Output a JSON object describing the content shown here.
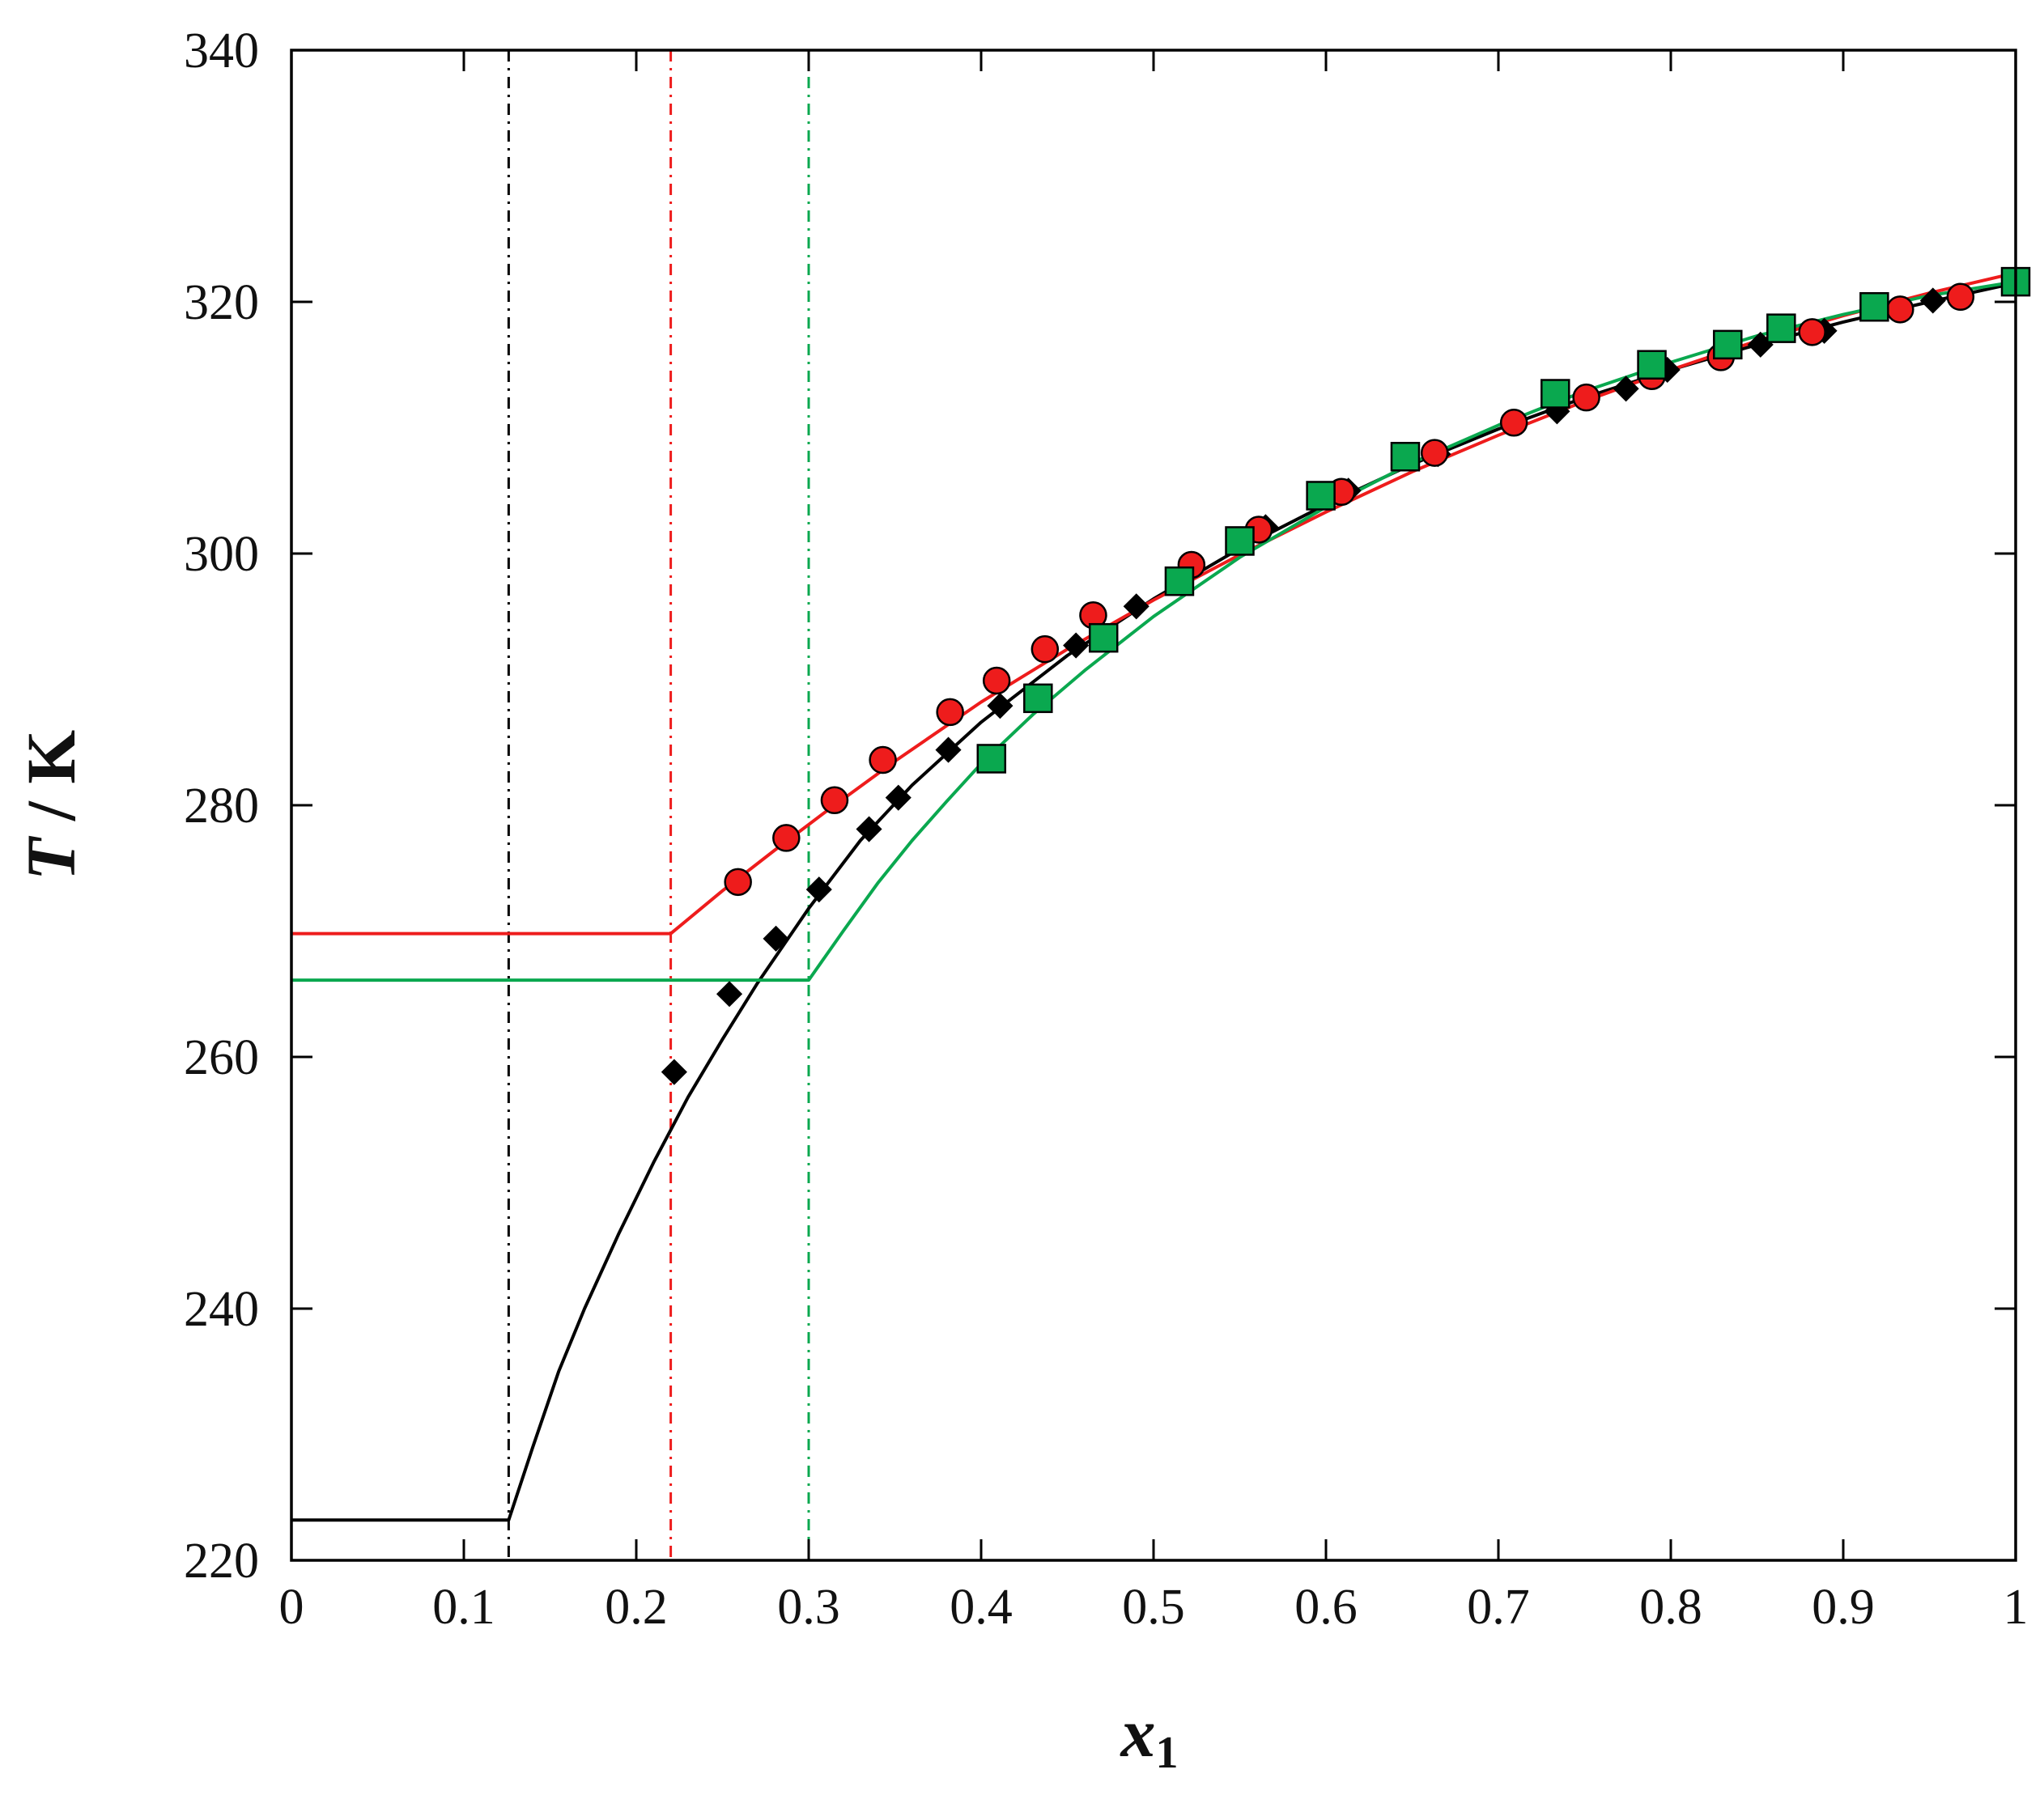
{
  "chart_data": {
    "type": "scatter",
    "title": "",
    "xlabel": {
      "main": "x",
      "sub": "1"
    },
    "ylabel": {
      "main": "T",
      "rest": " / K"
    },
    "xlim": [
      0,
      1
    ],
    "ylim": [
      220,
      340
    ],
    "xticks": [
      0,
      0.1,
      0.2,
      0.3,
      0.4,
      0.5,
      0.6,
      0.7,
      0.8,
      0.9,
      1
    ],
    "xtick_labels": [
      "0",
      "0.1",
      "0.2",
      "0.3",
      "0.4",
      "0.5",
      "0.6",
      "0.7",
      "0.8",
      "0.9",
      "1"
    ],
    "yticks": [
      220,
      240,
      260,
      280,
      300,
      320,
      340
    ],
    "ytick_labels": [
      "220",
      "240",
      "260",
      "280",
      "300",
      "320",
      "340"
    ],
    "grid": false,
    "legend": "none",
    "colors": {
      "black": "#000000",
      "red": "#ee1c1c",
      "green": "#0aa84f"
    },
    "series": [
      {
        "marker": "diamond",
        "color": "#000000",
        "points": [
          [
            0.222,
            258.8
          ],
          [
            0.254,
            265.0
          ],
          [
            0.281,
            269.4
          ],
          [
            0.306,
            273.3
          ],
          [
            0.335,
            278.1
          ],
          [
            0.352,
            280.6
          ],
          [
            0.381,
            284.4
          ],
          [
            0.411,
            287.9
          ],
          [
            0.455,
            292.7
          ],
          [
            0.49,
            295.8
          ],
          [
            0.565,
            302.1
          ],
          [
            0.613,
            305.0
          ],
          [
            0.665,
            307.9
          ],
          [
            0.734,
            311.3
          ],
          [
            0.774,
            313.1
          ],
          [
            0.798,
            314.6
          ],
          [
            0.852,
            316.6
          ],
          [
            0.889,
            317.7
          ],
          [
            0.952,
            320.1
          ]
        ],
        "fit": [
          [
            0,
            223.2
          ],
          [
            0.126,
            223.2
          ],
          [
            0.14,
            229.0
          ],
          [
            0.155,
            235.0
          ],
          [
            0.17,
            240.0
          ],
          [
            0.19,
            246.0
          ],
          [
            0.21,
            251.6
          ],
          [
            0.23,
            256.8
          ],
          [
            0.25,
            261.4
          ],
          [
            0.27,
            265.8
          ],
          [
            0.3,
            271.8
          ],
          [
            0.33,
            277.2
          ],
          [
            0.36,
            281.6
          ],
          [
            0.4,
            286.6
          ],
          [
            0.45,
            291.9
          ],
          [
            0.5,
            296.4
          ],
          [
            0.55,
            300.4
          ],
          [
            0.6,
            303.9
          ],
          [
            0.65,
            307.1
          ],
          [
            0.7,
            309.9
          ],
          [
            0.75,
            312.4
          ],
          [
            0.8,
            314.6
          ],
          [
            0.85,
            316.6
          ],
          [
            0.9,
            318.4
          ],
          [
            0.95,
            320.0
          ],
          [
            1.0,
            321.5
          ]
        ],
        "eutectic_x": 0.126
      },
      {
        "marker": "circle",
        "color": "#ee1c1c",
        "points": [
          [
            0.259,
            273.9
          ],
          [
            0.287,
            277.4
          ],
          [
            0.315,
            280.4
          ],
          [
            0.343,
            283.6
          ],
          [
            0.382,
            287.4
          ],
          [
            0.409,
            289.9
          ],
          [
            0.437,
            292.4
          ],
          [
            0.465,
            295.1
          ],
          [
            0.522,
            299.1
          ],
          [
            0.561,
            301.9
          ],
          [
            0.609,
            304.9
          ],
          [
            0.663,
            308.0
          ],
          [
            0.709,
            310.4
          ],
          [
            0.751,
            312.4
          ],
          [
            0.789,
            314.1
          ],
          [
            0.829,
            315.6
          ],
          [
            0.882,
            317.6
          ],
          [
            0.933,
            319.4
          ],
          [
            0.968,
            320.4
          ]
        ],
        "fit": [
          [
            0,
            269.8
          ],
          [
            0.22,
            269.8
          ],
          [
            0.25,
            273.2
          ],
          [
            0.28,
            276.4
          ],
          [
            0.31,
            279.5
          ],
          [
            0.35,
            283.5
          ],
          [
            0.4,
            288.2
          ],
          [
            0.45,
            292.4
          ],
          [
            0.5,
            296.3
          ],
          [
            0.55,
            299.9
          ],
          [
            0.6,
            303.3
          ],
          [
            0.65,
            306.5
          ],
          [
            0.7,
            309.4
          ],
          [
            0.75,
            312.1
          ],
          [
            0.8,
            314.6
          ],
          [
            0.85,
            316.9
          ],
          [
            0.9,
            318.9
          ],
          [
            0.95,
            320.7
          ],
          [
            1.0,
            322.3
          ]
        ],
        "eutectic_x": 0.22
      },
      {
        "marker": "square",
        "color": "#0aa84f",
        "points": [
          [
            0.406,
            283.7
          ],
          [
            0.433,
            288.5
          ],
          [
            0.471,
            293.3
          ],
          [
            0.515,
            297.8
          ],
          [
            0.55,
            301.0
          ],
          [
            0.597,
            304.6
          ],
          [
            0.646,
            307.7
          ],
          [
            0.733,
            312.7
          ],
          [
            0.789,
            315.0
          ],
          [
            0.833,
            316.6
          ],
          [
            0.864,
            317.9
          ],
          [
            0.918,
            319.6
          ],
          [
            1.0,
            321.6
          ]
        ],
        "fit": [
          [
            0,
            266.1
          ],
          [
            0.3,
            266.1
          ],
          [
            0.32,
            270.0
          ],
          [
            0.34,
            273.8
          ],
          [
            0.36,
            277.2
          ],
          [
            0.38,
            280.3
          ],
          [
            0.4,
            283.3
          ],
          [
            0.43,
            287.2
          ],
          [
            0.46,
            290.7
          ],
          [
            0.5,
            295.0
          ],
          [
            0.55,
            299.7
          ],
          [
            0.6,
            303.7
          ],
          [
            0.65,
            307.2
          ],
          [
            0.7,
            310.2
          ],
          [
            0.75,
            312.9
          ],
          [
            0.8,
            315.2
          ],
          [
            0.85,
            317.3
          ],
          [
            0.9,
            319.0
          ],
          [
            0.95,
            320.5
          ],
          [
            1.0,
            321.6
          ]
        ],
        "eutectic_x": 0.3
      }
    ]
  }
}
